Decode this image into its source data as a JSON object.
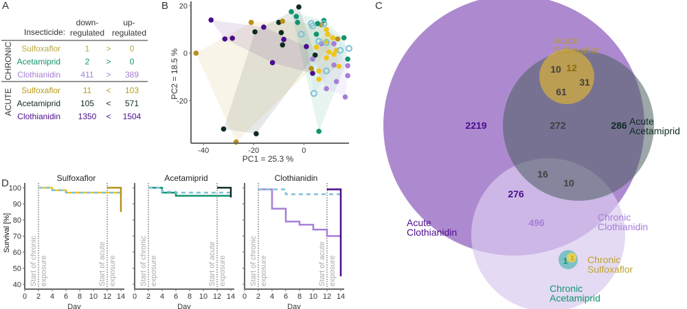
{
  "colors": {
    "acute_sulfoxaflor": "#b8901a",
    "chronic_sulfoxaflor": "#f0c419",
    "acute_acetamiprid": "#0e2a22",
    "chronic_acetamiprid": "#11936f",
    "acute_clothianidin": "#4b0c8c",
    "chronic_clothianidin": "#a57ed8",
    "control": "#7ec0d6",
    "sulfoxaflor_label": "#b39a2a",
    "axis": "#666666",
    "grey_text": "#aaaaaa"
  },
  "panels": {
    "A": "A",
    "B": "B",
    "C": "C",
    "D": "D"
  },
  "table": {
    "header_insecticide": "Insecticide:",
    "header_down_1": "down-",
    "header_down_2": "regulated",
    "header_up_1": "up-",
    "header_up_2": "regulated",
    "group_chronic": "CHRONIC",
    "group_acute": "ACUTE",
    "rows": [
      {
        "group": "chronic",
        "name": "Sulfoxaflor",
        "down": "1",
        "cmp": ">",
        "up": "0",
        "color": "#b8a640"
      },
      {
        "group": "chronic",
        "name": "Acetamiprid",
        "down": "2",
        "cmp": ">",
        "up": "0",
        "color": "#11936f"
      },
      {
        "group": "chronic",
        "name": "Clothianidin",
        "down": "411",
        "cmp": ">",
        "up": "389",
        "color": "#a57ed8"
      },
      {
        "group": "acute",
        "name": "Sulfoxaflor",
        "down": "11",
        "cmp": "<",
        "up": "103",
        "color": "#b89a1a"
      },
      {
        "group": "acute",
        "name": "Acetamiprid",
        "down": "105",
        "cmp": "<",
        "up": "571",
        "color": "#0e2a22"
      },
      {
        "group": "acute",
        "name": "Clothianidin",
        "down": "1350",
        "cmp": "<",
        "up": "1504",
        "color": "#4b0c8c"
      }
    ]
  },
  "chart_data": [
    {
      "id": "B",
      "type": "scatter",
      "title": "",
      "xlabel": "PC1 = 25.3 %",
      "ylabel": "PC2 = 18.5 %",
      "xlim": [
        -45,
        18
      ],
      "ylim": [
        -38,
        21
      ],
      "xticks": [
        -40,
        -20,
        0
      ],
      "yticks": [
        20,
        0,
        -20
      ],
      "grid": false,
      "series": [
        {
          "name": "acute_clothianidin",
          "color": "#4b0c8c",
          "hull": true,
          "hollow": false,
          "points": [
            [
              -37,
              14
            ],
            [
              -31.5,
              6
            ],
            [
              -28.5,
              6.3
            ],
            [
              -16,
              11
            ],
            [
              -8,
              5.8
            ],
            [
              -12.5,
              -4
            ],
            [
              1,
              2.8
            ],
            [
              3.5,
              -8.5
            ]
          ]
        },
        {
          "name": "acute_acetamiprid",
          "color": "#0e2a22",
          "hull": true,
          "hollow": false,
          "points": [
            [
              -2,
              19.5
            ],
            [
              -10,
              13
            ],
            [
              -19.5,
              9
            ],
            [
              -9,
              8.7
            ],
            [
              -8.5,
              3.5
            ],
            [
              4.5,
              -0.8
            ],
            [
              -32,
              -32
            ],
            [
              -19,
              -34
            ]
          ]
        },
        {
          "name": "acute_sulfoxaflor",
          "color": "#b8901a",
          "hull": true,
          "hollow": false,
          "points": [
            [
              -43,
              0
            ],
            [
              -21,
              13
            ],
            [
              -8.5,
              13.5
            ],
            [
              7,
              12
            ],
            [
              13.5,
              6
            ],
            [
              3,
              -6.5
            ],
            [
              -27,
              -37.5
            ]
          ]
        },
        {
          "name": "chronic_acetamiprid",
          "color": "#11936f",
          "hull": true,
          "hollow": false,
          "points": [
            [
              -5,
              17.5
            ],
            [
              -3,
              15.5
            ],
            [
              -2.5,
              13
            ],
            [
              5.5,
              12.5
            ],
            [
              8,
              13.8
            ],
            [
              5,
              8
            ],
            [
              16,
              6.5
            ],
            [
              17.5,
              -2.5
            ],
            [
              6,
              -33
            ]
          ]
        },
        {
          "name": "chronic_sulfoxaflor",
          "color": "#f0c419",
          "hull": true,
          "hollow": false,
          "points": [
            [
              9,
              10
            ],
            [
              9.5,
              8
            ],
            [
              11.5,
              6.5
            ],
            [
              9,
              5
            ],
            [
              5,
              2.5
            ],
            [
              13,
              1.2
            ],
            [
              10,
              0.5
            ],
            [
              12,
              -0.5
            ],
            [
              14,
              -5.5
            ],
            [
              6,
              -7.5
            ],
            [
              6,
              -11
            ],
            [
              9,
              -2
            ]
          ]
        },
        {
          "name": "chronic_clothianidin",
          "color": "#a57ed8",
          "hull": true,
          "hollow": false,
          "points": [
            [
              12,
              4
            ],
            [
              7,
              4
            ],
            [
              3.5,
              -2.5
            ],
            [
              12,
              -5
            ],
            [
              17.5,
              -5.3
            ],
            [
              17.5,
              -9.5
            ],
            [
              13,
              -12
            ],
            [
              9,
              -15
            ],
            [
              16.5,
              -18.5
            ]
          ]
        },
        {
          "name": "control",
          "color": "#7ec0d6",
          "hull": true,
          "hollow": true,
          "points": [
            [
              3,
              12.5
            ],
            [
              3.5,
              11.5
            ],
            [
              8,
              12.5
            ],
            [
              -1,
              8
            ],
            [
              6,
              5
            ],
            [
              9,
              4.5
            ],
            [
              14.5,
              1.2
            ],
            [
              18,
              2
            ],
            [
              9,
              -7.5
            ],
            [
              4,
              -17
            ]
          ]
        }
      ]
    },
    {
      "id": "C",
      "type": "venn",
      "sets": [
        {
          "name": "Acute Clothianidin",
          "label_1": "Acute",
          "label_2": "Clothianidin",
          "color": "#a984cc",
          "label_color": "#4b0c8c"
        },
        {
          "name": "Acute Sulfoxaflor",
          "label_1": "Acute",
          "label_2": "Sulfoxaflor",
          "color": "#e6c35a",
          "label_color": "#b39a2a"
        },
        {
          "name": "Acute Acetamiprid",
          "label_1": "Acute",
          "label_2": "Acetamiprid",
          "color": "#8fa6a0",
          "label_color": "#0e2a22"
        },
        {
          "name": "Chronic Clothianidin",
          "label_1": "Chronic",
          "label_2": "Clothianidin",
          "color": "#e5dbf2",
          "label_color": "#a57ed8"
        },
        {
          "name": "Chronic Sulfoxaflor",
          "label_1": "Chronic",
          "label_2": "Sulfoxaflor",
          "color": "#f0d24a",
          "label_color": "#c0a22a"
        },
        {
          "name": "Chronic Acetamiprid",
          "label_1": "Chronic",
          "label_2": "Acetamiprid",
          "color": "#7fc3c0",
          "label_color": "#11936f"
        }
      ],
      "regions": [
        {
          "sets": "Acute Clothianidin only",
          "value": "2219",
          "color": "#4b0c8c"
        },
        {
          "sets": "Acute Clothianidin & Acute Sulfoxaflor",
          "value": "10",
          "color": "#3f3f3f"
        },
        {
          "sets": "Acute Sulfoxaflor only",
          "value": "12",
          "color": "#8a6a10"
        },
        {
          "sets": "Acute Sulfoxaflor & Acute Acetamiprid",
          "value": "31",
          "color": "#3f3f3f"
        },
        {
          "sets": "Acute Clothianidin & Acute Sulfoxaflor & Acute Acetamiprid",
          "value": "61",
          "color": "#3f3f3f"
        },
        {
          "sets": "Acute Clothianidin & Acute Acetamiprid",
          "value": "272",
          "color": "#3f3f3f"
        },
        {
          "sets": "Acute Acetamiprid only",
          "value": "286",
          "color": "#0e2a22"
        },
        {
          "sets": "Acute Clothianidin & Acute Acetamiprid & Chronic Clothianidin",
          "value": "16",
          "color": "#3f3f3f"
        },
        {
          "sets": "Acute Acetamiprid & Chronic Clothianidin",
          "value": "10",
          "color": "#3f3f3f"
        },
        {
          "sets": "Acute Clothianidin & Chronic Clothianidin",
          "value": "276",
          "color": "#4b0c8c"
        },
        {
          "sets": "Chronic Clothianidin only",
          "value": "496",
          "color": "#a57ed8"
        },
        {
          "sets": "Chronic Acetamiprid",
          "value": "1",
          "color": "#11936f"
        },
        {
          "sets": "Chronic Sulfoxaflor",
          "value": "1",
          "color": "#c0a22a"
        }
      ]
    },
    {
      "id": "D",
      "type": "line",
      "ylabel": "Survival [%]",
      "xlabel": "Day",
      "xlim": [
        0,
        14.5
      ],
      "ylim": [
        37,
        103
      ],
      "xticks": [
        0,
        2,
        4,
        6,
        8,
        10,
        12,
        14
      ],
      "yticks": [
        100,
        90,
        80,
        70,
        60,
        50,
        40
      ],
      "annotations": [
        {
          "x": 2,
          "line_1": "Start of chronic",
          "line_2": "exposure"
        },
        {
          "x": 12,
          "line_1": "Start of acute",
          "line_2": "exposure"
        }
      ],
      "subplots": [
        {
          "title": "Sulfoxaflor",
          "series": [
            {
              "name": "chronic",
              "color": "#f0c419",
              "dashed": false,
              "steps": [
                [
                  2,
                  100
                ],
                [
                  4,
                  98.5
                ],
                [
                  6,
                  97
                ],
                [
                  14,
                  97
                ]
              ]
            },
            {
              "name": "control",
              "color": "#7ec0d6",
              "dashed": true,
              "steps": [
                [
                  2,
                  100
                ],
                [
                  4,
                  98.5
                ],
                [
                  6,
                  97
                ],
                [
                  14,
                  97
                ]
              ]
            },
            {
              "name": "acute",
              "color": "#b8901a",
              "dashed": false,
              "steps": [
                [
                  12,
                  100
                ],
                [
                  14,
                  100
                ],
                [
                  14,
                  85
                ]
              ]
            }
          ]
        },
        {
          "title": "Acetamiprid",
          "series": [
            {
              "name": "chronic",
              "color": "#11936f",
              "dashed": false,
              "steps": [
                [
                  2,
                  100
                ],
                [
                  4,
                  97
                ],
                [
                  6,
                  95
                ],
                [
                  14,
                  95
                ]
              ]
            },
            {
              "name": "control",
              "color": "#7ec0d6",
              "dashed": true,
              "steps": [
                [
                  2,
                  100
                ],
                [
                  4,
                  97.5
                ],
                [
                  6,
                  97
                ],
                [
                  14,
                  97
                ]
              ]
            },
            {
              "name": "acute",
              "color": "#0e2a22",
              "dashed": false,
              "steps": [
                [
                  12,
                  100
                ],
                [
                  14,
                  100
                ],
                [
                  14,
                  94
                ]
              ]
            }
          ]
        },
        {
          "title": "Clothianidin",
          "series": [
            {
              "name": "chronic",
              "color": "#a57ed8",
              "dashed": false,
              "steps": [
                [
                  2,
                  99
                ],
                [
                  4,
                  87
                ],
                [
                  6,
                  79
                ],
                [
                  8,
                  77
                ],
                [
                  10,
                  74
                ],
                [
                  12,
                  70
                ],
                [
                  14,
                  70
                ]
              ]
            },
            {
              "name": "control",
              "color": "#7ec0d6",
              "dashed": true,
              "steps": [
                [
                  2,
                  99
                ],
                [
                  4,
                  99
                ],
                [
                  6,
                  96
                ],
                [
                  14,
                  96
                ]
              ]
            },
            {
              "name": "acute",
              "color": "#4b0c8c",
              "dashed": false,
              "steps": [
                [
                  12,
                  99
                ],
                [
                  14,
                  99
                ],
                [
                  14,
                  45
                ]
              ]
            }
          ]
        }
      ]
    }
  ]
}
